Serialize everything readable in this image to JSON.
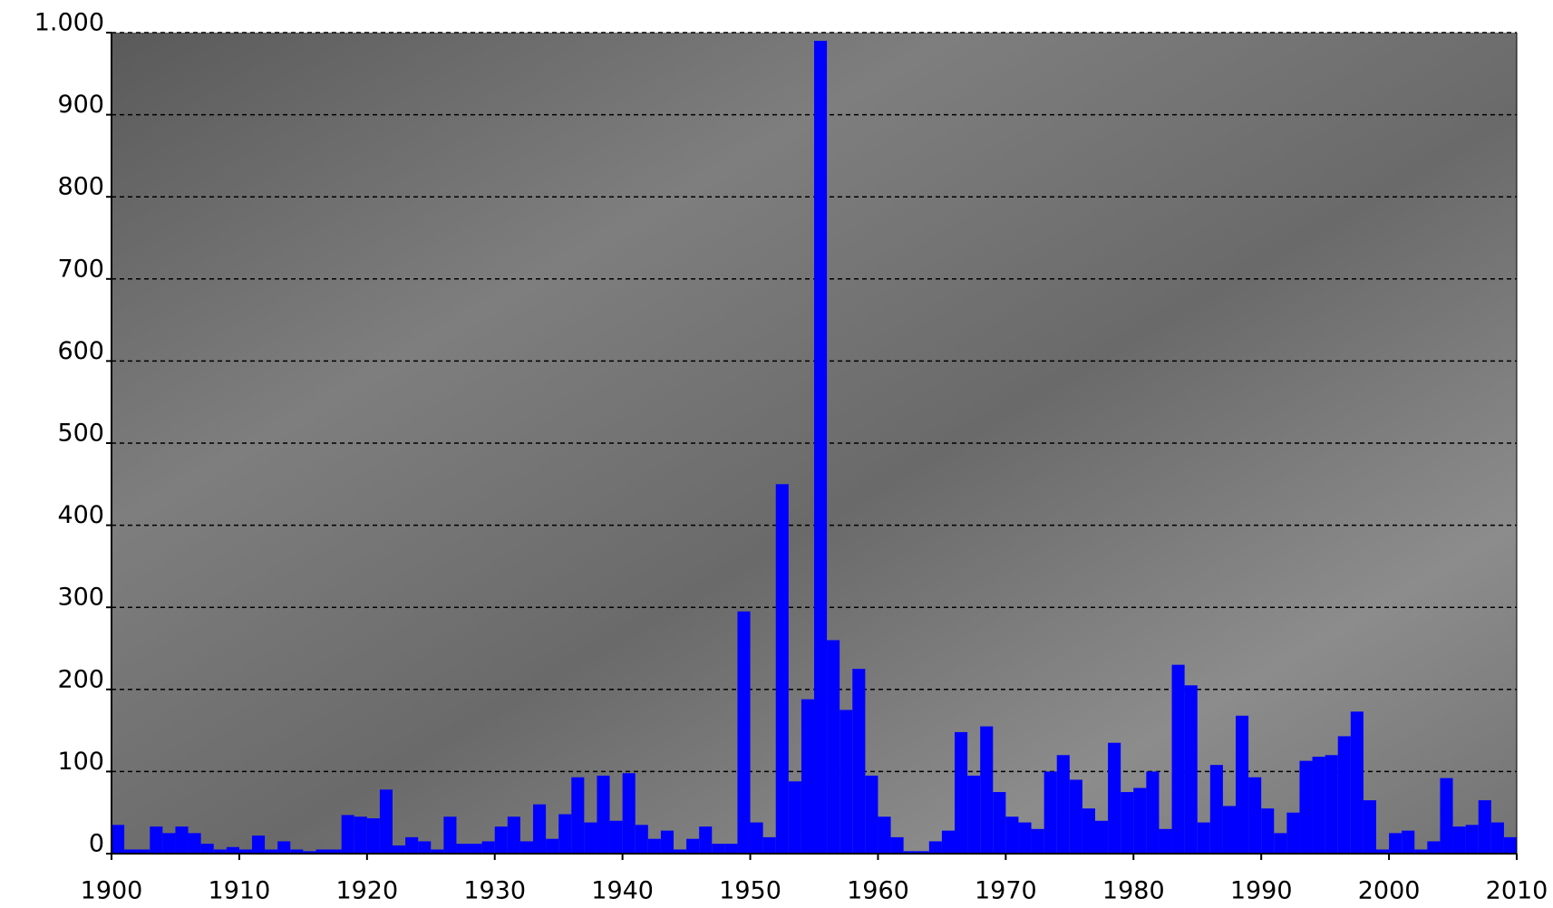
{
  "chart_data": {
    "type": "bar",
    "color": "#0000ff",
    "x": [
      1900,
      1901,
      1902,
      1903,
      1904,
      1905,
      1906,
      1907,
      1908,
      1909,
      1910,
      1911,
      1912,
      1913,
      1914,
      1915,
      1916,
      1917,
      1918,
      1919,
      1920,
      1921,
      1922,
      1923,
      1924,
      1925,
      1926,
      1927,
      1928,
      1929,
      1930,
      1931,
      1932,
      1933,
      1934,
      1935,
      1936,
      1937,
      1938,
      1939,
      1940,
      1941,
      1942,
      1943,
      1944,
      1945,
      1946,
      1947,
      1948,
      1949,
      1950,
      1951,
      1952,
      1953,
      1954,
      1955,
      1956,
      1957,
      1958,
      1959,
      1960,
      1961,
      1962,
      1963,
      1964,
      1965,
      1966,
      1967,
      1968,
      1969,
      1970,
      1971,
      1972,
      1973,
      1974,
      1975,
      1976,
      1977,
      1978,
      1979,
      1980,
      1981,
      1982,
      1983,
      1984,
      1985,
      1986,
      1987,
      1988,
      1989,
      1990,
      1991,
      1992,
      1993,
      1994,
      1995,
      1996,
      1997,
      1998,
      1999,
      2000,
      2001,
      2002,
      2003,
      2004,
      2005,
      2006,
      2007,
      2008,
      2009
    ],
    "values": [
      35,
      5,
      5,
      33,
      25,
      33,
      25,
      12,
      5,
      8,
      5,
      22,
      5,
      15,
      5,
      3,
      5,
      5,
      47,
      45,
      43,
      78,
      10,
      20,
      15,
      5,
      45,
      12,
      12,
      15,
      33,
      45,
      15,
      60,
      18,
      48,
      93,
      38,
      95,
      40,
      98,
      35,
      18,
      28,
      5,
      18,
      33,
      12,
      12,
      295,
      38,
      20,
      450,
      88,
      188,
      990,
      260,
      175,
      225,
      95,
      45,
      20,
      3,
      3,
      15,
      28,
      148,
      95,
      155,
      75,
      45,
      38,
      30,
      100,
      120,
      90,
      55,
      40,
      135,
      75,
      80,
      100,
      30,
      230,
      205,
      38,
      108,
      58,
      168,
      93,
      55,
      25,
      50,
      113,
      118,
      120,
      143,
      173,
      65,
      5,
      25,
      28,
      5,
      15,
      92,
      33,
      35,
      65,
      38,
      20
    ],
    "xlim": [
      1900,
      2010
    ],
    "xticks": [
      1900,
      1910,
      1920,
      1930,
      1940,
      1950,
      1960,
      1970,
      1980,
      1990,
      2000,
      2010
    ],
    "ylim": [
      0,
      1000
    ],
    "yticks": [
      0,
      100,
      200,
      300,
      400,
      500,
      600,
      700,
      800,
      900,
      {
        "value": 1000,
        "label": "1.000"
      }
    ],
    "grid": true
  }
}
